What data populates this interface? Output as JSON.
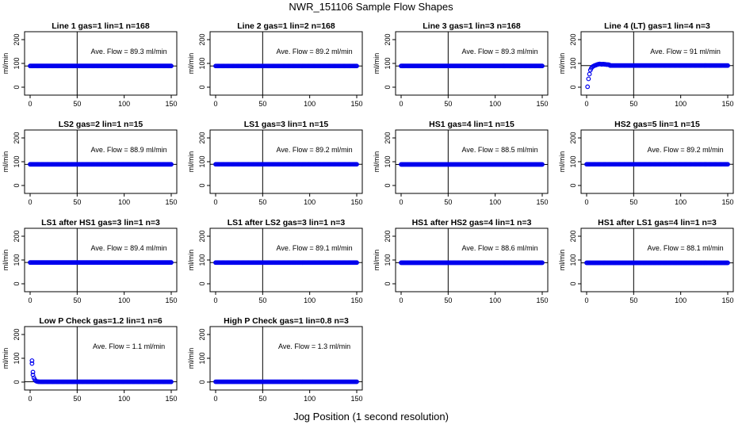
{
  "title": "NWR_151106  Sample Flow Shapes",
  "xlabel": "Jog Position (1 second resolution)",
  "ylabel": "ml/min",
  "colors": {
    "points": "#0000ee",
    "axis": "#000000"
  },
  "chart_data": [
    {
      "type": "scatter",
      "title": "Line 1 gas=1 lin=1 n=168",
      "annotation": "Ave. Flow =  89.3  ml/min",
      "xlim": [
        0,
        150
      ],
      "ylim": [
        0,
        200
      ],
      "xticks": [
        0,
        50,
        100,
        150
      ],
      "yticks": [
        0,
        100,
        200
      ],
      "hline": 89.3,
      "vline": 50,
      "shape": "flat",
      "level": 89.3
    },
    {
      "type": "scatter",
      "title": "Line 2 gas=1 lin=2 n=168",
      "annotation": "Ave. Flow =  89.2  ml/min",
      "xlim": [
        0,
        150
      ],
      "ylim": [
        0,
        200
      ],
      "xticks": [
        0,
        50,
        100,
        150
      ],
      "yticks": [
        0,
        100,
        200
      ],
      "hline": 89.2,
      "vline": 50,
      "shape": "flat",
      "level": 89.2
    },
    {
      "type": "scatter",
      "title": "Line 3 gas=1 lin=3 n=168",
      "annotation": "Ave. Flow =  89.3  ml/min",
      "xlim": [
        0,
        150
      ],
      "ylim": [
        0,
        200
      ],
      "xticks": [
        0,
        50,
        100,
        150
      ],
      "yticks": [
        0,
        100,
        200
      ],
      "hline": 89.3,
      "vline": 50,
      "shape": "flat",
      "level": 89.3
    },
    {
      "type": "scatter",
      "title": "Line 4 (LT) gas=1 lin=4 n=3",
      "annotation": "Ave. Flow =  91  ml/min",
      "xlim": [
        0,
        150
      ],
      "ylim": [
        0,
        200
      ],
      "xticks": [
        0,
        50,
        100,
        150
      ],
      "yticks": [
        0,
        100,
        200
      ],
      "hline": 91,
      "vline": 50,
      "shape": "rise",
      "level": 91,
      "points": [
        [
          1,
          2
        ],
        [
          2,
          35
        ],
        [
          3,
          55
        ],
        [
          4,
          72
        ],
        [
          5,
          80
        ],
        [
          6,
          85
        ],
        [
          7,
          88
        ],
        [
          8,
          90
        ],
        [
          9,
          92
        ],
        [
          10,
          93
        ],
        [
          11,
          95
        ],
        [
          12,
          96
        ],
        [
          13,
          97
        ],
        [
          14,
          98
        ],
        [
          15,
          97
        ],
        [
          16,
          96
        ],
        [
          17,
          97
        ],
        [
          18,
          97
        ],
        [
          19,
          96
        ],
        [
          20,
          96
        ],
        [
          21,
          95
        ],
        [
          22,
          95
        ],
        [
          23,
          95
        ],
        [
          24,
          94
        ]
      ]
    },
    {
      "type": "scatter",
      "title": "LS2 gas=2 lin=1 n=15",
      "annotation": "Ave. Flow =  88.9  ml/min",
      "xlim": [
        0,
        150
      ],
      "ylim": [
        0,
        200
      ],
      "xticks": [
        0,
        50,
        100,
        150
      ],
      "yticks": [
        0,
        100,
        200
      ],
      "hline": 88.9,
      "vline": 50,
      "shape": "flat",
      "level": 88.9
    },
    {
      "type": "scatter",
      "title": "LS1 gas=3 lin=1 n=15",
      "annotation": "Ave. Flow =  89.2  ml/min",
      "xlim": [
        0,
        150
      ],
      "ylim": [
        0,
        200
      ],
      "xticks": [
        0,
        50,
        100,
        150
      ],
      "yticks": [
        0,
        100,
        200
      ],
      "hline": 89.2,
      "vline": 50,
      "shape": "flat",
      "level": 89.2
    },
    {
      "type": "scatter",
      "title": "HS1 gas=4 lin=1 n=15",
      "annotation": "Ave. Flow =  88.5  ml/min",
      "xlim": [
        0,
        150
      ],
      "ylim": [
        0,
        200
      ],
      "xticks": [
        0,
        50,
        100,
        150
      ],
      "yticks": [
        0,
        100,
        200
      ],
      "hline": 88.5,
      "vline": 50,
      "shape": "flat",
      "level": 88.5
    },
    {
      "type": "scatter",
      "title": "HS2 gas=5 lin=1 n=15",
      "annotation": "Ave. Flow =  89.2  ml/min",
      "xlim": [
        0,
        150
      ],
      "ylim": [
        0,
        200
      ],
      "xticks": [
        0,
        50,
        100,
        150
      ],
      "yticks": [
        0,
        100,
        200
      ],
      "hline": 89.2,
      "vline": 50,
      "shape": "flat",
      "level": 89.2
    },
    {
      "type": "scatter",
      "title": "LS1 after HS1 gas=3 lin=1 n=3",
      "annotation": "Ave. Flow =  89.4  ml/min",
      "xlim": [
        0,
        150
      ],
      "ylim": [
        0,
        200
      ],
      "xticks": [
        0,
        50,
        100,
        150
      ],
      "yticks": [
        0,
        100,
        200
      ],
      "hline": 89.4,
      "vline": 50,
      "shape": "flat",
      "level": 89.4
    },
    {
      "type": "scatter",
      "title": "LS1 after LS2 gas=3 lin=1 n=3",
      "annotation": "Ave. Flow =  89.1  ml/min",
      "xlim": [
        0,
        150
      ],
      "ylim": [
        0,
        200
      ],
      "xticks": [
        0,
        50,
        100,
        150
      ],
      "yticks": [
        0,
        100,
        200
      ],
      "hline": 89.1,
      "vline": 50,
      "shape": "flat",
      "level": 89.1
    },
    {
      "type": "scatter",
      "title": "HS1 after HS2 gas=4 lin=1 n=3",
      "annotation": "Ave. Flow =  88.6  ml/min",
      "xlim": [
        0,
        150
      ],
      "ylim": [
        0,
        200
      ],
      "xticks": [
        0,
        50,
        100,
        150
      ],
      "yticks": [
        0,
        100,
        200
      ],
      "hline": 88.6,
      "vline": 50,
      "shape": "flat",
      "level": 88.6
    },
    {
      "type": "scatter",
      "title": "HS1 after LS1 gas=4 lin=1 n=3",
      "annotation": "Ave. Flow =  88.1  ml/min",
      "xlim": [
        0,
        150
      ],
      "ylim": [
        0,
        200
      ],
      "xticks": [
        0,
        50,
        100,
        150
      ],
      "yticks": [
        0,
        100,
        200
      ],
      "hline": 88.1,
      "vline": 50,
      "shape": "flat",
      "level": 88.1
    },
    {
      "type": "scatter",
      "title": "Low P Check gas=1.2 lin=1 n=6",
      "annotation": "Ave. Flow =  1.1  ml/min",
      "xlim": [
        0,
        150
      ],
      "ylim": [
        0,
        200
      ],
      "xticks": [
        0,
        50,
        100,
        150
      ],
      "yticks": [
        0,
        100,
        200
      ],
      "hline": 1.1,
      "vline": 50,
      "shape": "decay",
      "level": 1.1,
      "points": [
        [
          2,
          90
        ],
        [
          2,
          78
        ],
        [
          3,
          42
        ],
        [
          3,
          30
        ],
        [
          4,
          18
        ],
        [
          5,
          10
        ],
        [
          6,
          5
        ],
        [
          7,
          3
        ],
        [
          8,
          2
        ],
        [
          9,
          1.5
        ],
        [
          10,
          1.2
        ]
      ]
    },
    {
      "type": "scatter",
      "title": "High P Check gas=1 lin=0.8 n=3",
      "annotation": "Ave. Flow =  1.3  ml/min",
      "xlim": [
        0,
        150
      ],
      "ylim": [
        0,
        200
      ],
      "xticks": [
        0,
        50,
        100,
        150
      ],
      "yticks": [
        0,
        100,
        200
      ],
      "hline": 1.3,
      "vline": 50,
      "shape": "flat",
      "level": 1.3
    }
  ]
}
